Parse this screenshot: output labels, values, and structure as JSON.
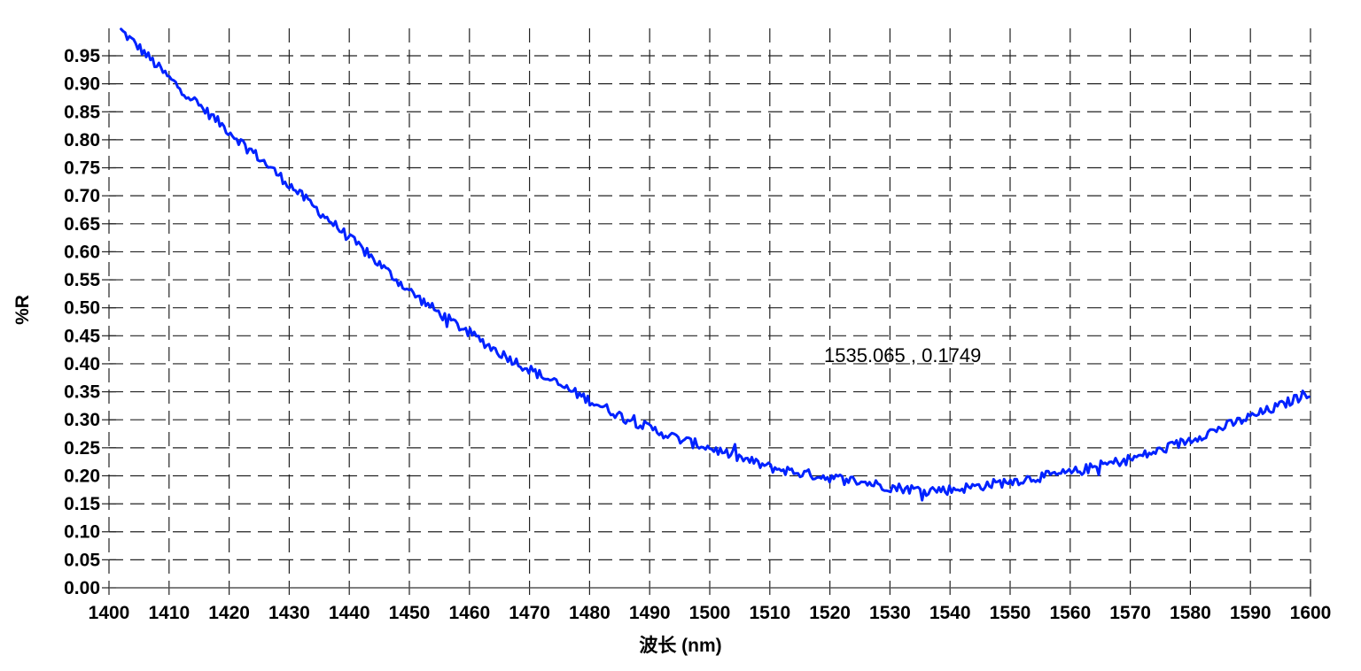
{
  "chart_data": {
    "type": "line",
    "title": "",
    "xlabel": "波长 (nm)",
    "ylabel": "%R",
    "xlim": [
      1400,
      1600
    ],
    "ylim": [
      0,
      1.0
    ],
    "x_ticks": [
      1400,
      1410,
      1420,
      1430,
      1440,
      1450,
      1460,
      1470,
      1480,
      1490,
      1500,
      1510,
      1520,
      1530,
      1540,
      1550,
      1560,
      1570,
      1580,
      1590,
      1600
    ],
    "y_ticks": [
      "0.00",
      "0.05",
      "0.10",
      "0.15",
      "0.20",
      "0.25",
      "0.30",
      "0.35",
      "0.40",
      "0.45",
      "0.50",
      "0.55",
      "0.60",
      "0.65",
      "0.70",
      "0.75",
      "0.80",
      "0.85",
      "0.90",
      "0.95"
    ],
    "grid": true,
    "grid_style": "dashed",
    "legend": null,
    "series": [
      {
        "name": "%R",
        "color": "#0022ff",
        "x": [
          1402,
          1405,
          1410,
          1415,
          1420,
          1425,
          1430,
          1435,
          1440,
          1445,
          1450,
          1455,
          1460,
          1465,
          1470,
          1475,
          1480,
          1485,
          1490,
          1495,
          1500,
          1505,
          1510,
          1515,
          1520,
          1525,
          1530,
          1535,
          1540,
          1545,
          1550,
          1555,
          1560,
          1565,
          1570,
          1575,
          1580,
          1585,
          1590,
          1595,
          1600
        ],
        "values": [
          0.995,
          0.965,
          0.91,
          0.862,
          0.815,
          0.768,
          0.72,
          0.672,
          0.625,
          0.578,
          0.53,
          0.49,
          0.455,
          0.42,
          0.39,
          0.362,
          0.335,
          0.308,
          0.285,
          0.265,
          0.25,
          0.232,
          0.215,
          0.205,
          0.197,
          0.19,
          0.18,
          0.175,
          0.175,
          0.182,
          0.19,
          0.198,
          0.205,
          0.218,
          0.23,
          0.245,
          0.265,
          0.285,
          0.305,
          0.325,
          0.35
        ]
      }
    ],
    "annotations": [
      {
        "text": "1535.065 , 0.1749",
        "x": 1535.065,
        "y": 0.1749
      }
    ]
  },
  "labels": {
    "xlabel": "波长 (nm)",
    "ylabel": "%R",
    "cursor_readout": "1535.065 , 0.1749"
  }
}
